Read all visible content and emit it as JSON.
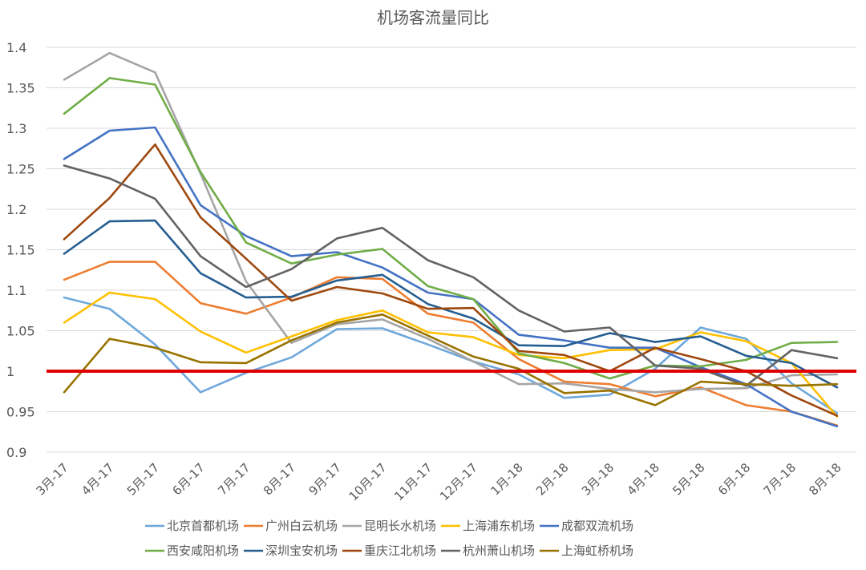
{
  "chart_data": {
    "type": "line",
    "title": "机场客流量同比",
    "xlabel": "",
    "ylabel": "",
    "ylim": [
      0.9,
      1.4
    ],
    "yticks": [
      "0.9",
      "0.95",
      "1",
      "1.05",
      "1.1",
      "1.15",
      "1.2",
      "1.25",
      "1.3",
      "1.35",
      "1.4"
    ],
    "grid": true,
    "legend_position": "bottom",
    "reference_line": {
      "y": 1.0,
      "color": "#e00000"
    },
    "categories": [
      "3月-17",
      "4月-17",
      "5月-17",
      "6月-17",
      "7月-17",
      "8月-17",
      "9月-17",
      "10月-17",
      "11月-17",
      "12月-17",
      "1月-18",
      "2月-18",
      "3月-18",
      "4月-18",
      "5月-18",
      "6月-18",
      "7月-18",
      "8月-18"
    ],
    "series": [
      {
        "name": "北京首都机场",
        "color": "#6fa8dc",
        "values": [
          1.091,
          1.077,
          1.033,
          0.974,
          0.998,
          1.017,
          1.052,
          1.053,
          1.033,
          1.012,
          0.996,
          0.967,
          0.971,
          1.003,
          1.054,
          1.04,
          0.985,
          0.948
        ]
      },
      {
        "name": "广州白云机场",
        "color": "#ed7d31",
        "values": [
          1.113,
          1.135,
          1.135,
          1.084,
          1.071,
          1.091,
          1.116,
          1.114,
          1.071,
          1.06,
          1.015,
          0.987,
          0.984,
          0.969,
          0.98,
          0.958,
          0.95,
          0.933
        ]
      },
      {
        "name": "昆明长水机场",
        "color": "#a5a5a5",
        "values": [
          1.36,
          1.393,
          1.369,
          1.244,
          1.111,
          1.035,
          1.058,
          1.064,
          1.04,
          1.012,
          0.984,
          0.985,
          0.978,
          0.974,
          0.978,
          0.979,
          0.995,
          0.996
        ]
      },
      {
        "name": "上海浦东机场",
        "color": "#ffc000",
        "values": [
          1.06,
          1.097,
          1.089,
          1.049,
          1.023,
          1.043,
          1.063,
          1.075,
          1.048,
          1.042,
          1.02,
          1.016,
          1.026,
          1.027,
          1.048,
          1.037,
          1.01,
          0.944
        ]
      },
      {
        "name": "成都双流机场",
        "color": "#4472c4",
        "values": [
          1.262,
          1.297,
          1.301,
          1.205,
          1.167,
          1.142,
          1.147,
          1.128,
          1.097,
          1.089,
          1.045,
          1.038,
          1.029,
          1.029,
          1.005,
          0.984,
          0.95,
          0.932
        ]
      },
      {
        "name": "西安咸阳机场",
        "color": "#70ad47",
        "values": [
          1.318,
          1.362,
          1.354,
          1.246,
          1.159,
          1.133,
          1.144,
          1.151,
          1.105,
          1.089,
          1.022,
          1.01,
          0.991,
          1.007,
          1.006,
          1.014,
          1.035,
          1.036
        ]
      },
      {
        "name": "深圳宝安机场",
        "color": "#255e91",
        "values": [
          1.145,
          1.185,
          1.186,
          1.121,
          1.091,
          1.092,
          1.112,
          1.119,
          1.083,
          1.065,
          1.032,
          1.031,
          1.047,
          1.036,
          1.043,
          1.019,
          1.01,
          0.98
        ]
      },
      {
        "name": "重庆江北机场",
        "color": "#9e480e",
        "values": [
          1.163,
          1.214,
          1.28,
          1.19,
          1.139,
          1.087,
          1.104,
          1.096,
          1.077,
          1.078,
          1.025,
          1.02,
          1.0,
          1.029,
          1.015,
          1.0,
          0.97,
          0.945
        ]
      },
      {
        "name": "杭州萧山机场",
        "color": "#636363",
        "values": [
          1.254,
          1.238,
          1.213,
          1.142,
          1.104,
          1.126,
          1.164,
          1.177,
          1.137,
          1.116,
          1.075,
          1.049,
          1.054,
          1.007,
          1.003,
          0.982,
          1.026,
          1.016
        ]
      },
      {
        "name": "上海虹桥机场",
        "color": "#997300",
        "values": [
          0.974,
          1.04,
          1.029,
          1.011,
          1.01,
          1.038,
          1.06,
          1.07,
          1.044,
          1.018,
          1.003,
          0.973,
          0.976,
          0.958,
          0.987,
          0.984,
          0.982,
          0.984
        ]
      }
    ]
  }
}
